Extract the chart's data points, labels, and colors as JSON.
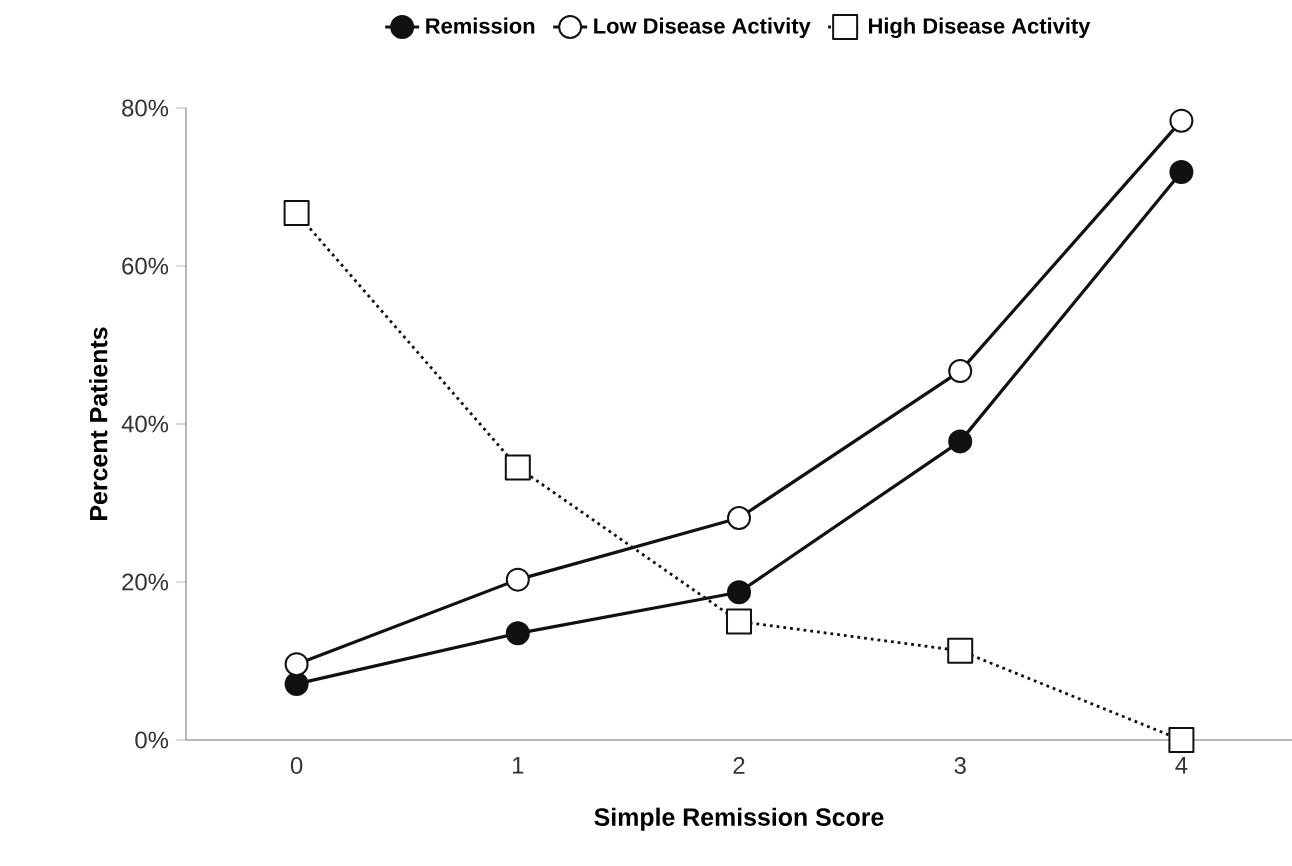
{
  "chart_data": {
    "type": "line",
    "xlabel": "Simple Remission Score",
    "ylabel": "Percent Patients",
    "categories": [
      "0",
      "1",
      "2",
      "3",
      "4"
    ],
    "series": [
      {
        "name": "Remission",
        "color": "#111111",
        "values": [
          7.1,
          13.5,
          18.7,
          37.8,
          71.9
        ],
        "marker": "circle",
        "line_style": "solid"
      },
      {
        "name": "Low Disease Activity",
        "color": "#111111",
        "values": [
          9.6,
          20.3,
          28.1,
          46.7,
          78.4
        ],
        "marker": "circle",
        "line_style": "solid"
      },
      {
        "name": "High Disease Activity",
        "color": "#111111",
        "values": [
          66.7,
          34.5,
          15.0,
          11.3,
          0
        ],
        "marker": "square",
        "line_style": "dotted"
      }
    ],
    "ylim": [
      0,
      80
    ],
    "yticks": [
      {
        "value": 0,
        "label": "0%"
      },
      {
        "value": 20,
        "label": "20%"
      },
      {
        "value": 40,
        "label": "40%"
      },
      {
        "value": 60,
        "label": "60%"
      },
      {
        "value": 80,
        "label": "80%"
      }
    ],
    "grid": false,
    "legend": "top"
  }
}
